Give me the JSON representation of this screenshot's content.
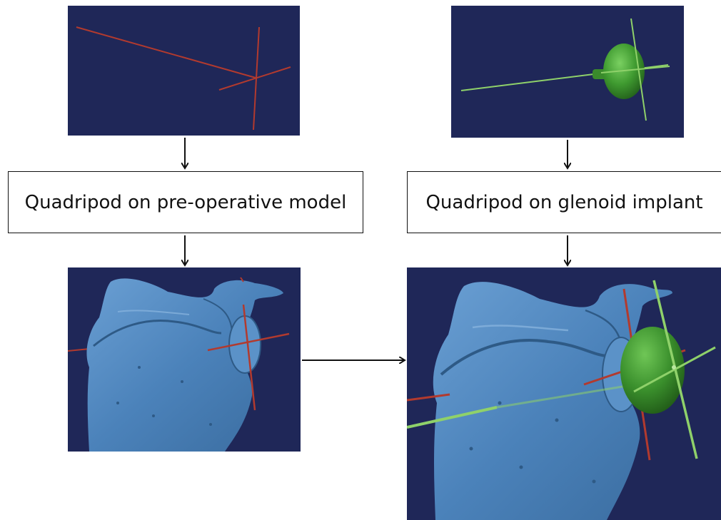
{
  "labels": {
    "left": "Quadripod on pre-operative model",
    "right": "Quadripod on glenoid implant"
  },
  "icons": {
    "top_left_panel": "red-quadripod-axes",
    "top_right_panel": "green-glenoid-implant-with-axes",
    "bottom_left_panel": "scapula-model-with-red-quadripod",
    "bottom_right_panel": "scapula-model-with-red-and-green-quadripods-and-glenoid-implant"
  },
  "colors": {
    "panel_background": "#1f2758",
    "preoperative_axis": "#b23a2e",
    "implant_axis": "#8fd16a",
    "implant_body": "#3e8f2f",
    "bone": "#4f86bd",
    "arrow": "#111111"
  }
}
